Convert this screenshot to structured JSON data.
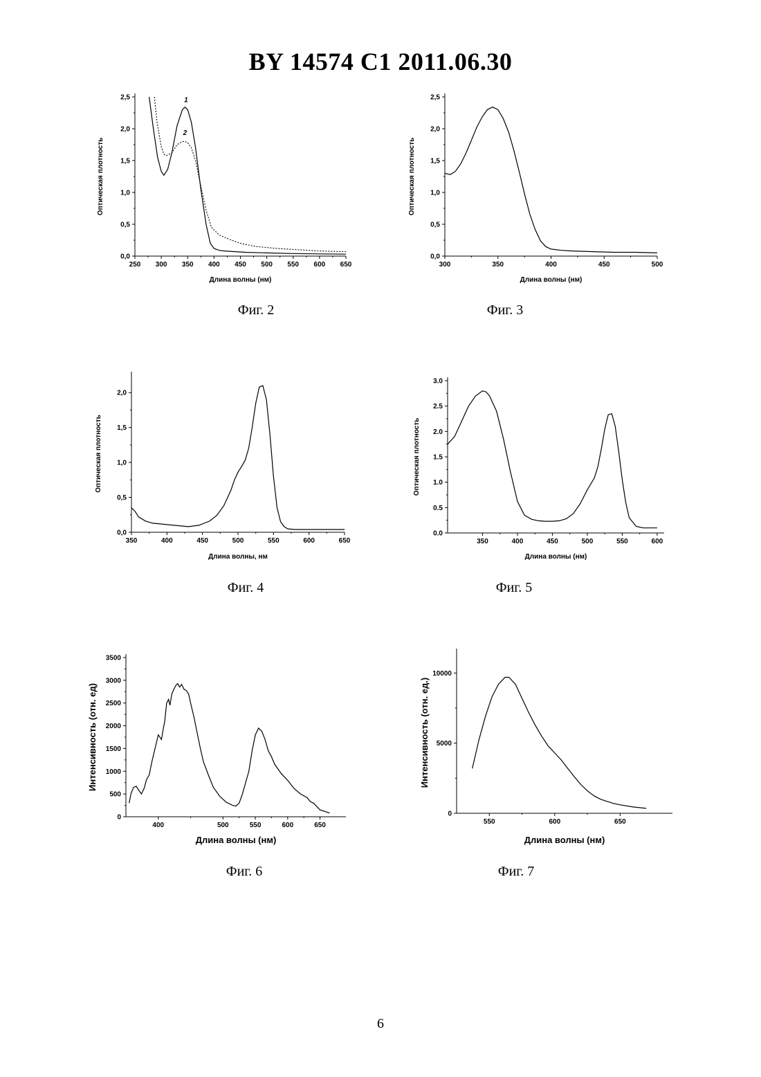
{
  "header": {
    "title": "BY  14574  C1  2011.06.30"
  },
  "page_number": "6",
  "figures": [
    {
      "caption": "Фиг. 2"
    },
    {
      "caption": "Фиг. 3"
    },
    {
      "caption": "Фиг. 4"
    },
    {
      "caption": "Фиг. 5"
    },
    {
      "caption": "Фиг. 6"
    },
    {
      "caption": "Фиг. 7"
    }
  ],
  "chart_data": [
    {
      "type": "line",
      "figure": "Фиг. 2",
      "title": "",
      "xlabel": "Длина волны (нм)",
      "ylabel": "Оптическая плотность",
      "xlim": [
        250,
        650
      ],
      "ylim": [
        0,
        2.5
      ],
      "xticks": [
        250,
        300,
        350,
        400,
        450,
        500,
        550,
        600,
        650
      ],
      "xtick_labels": [
        "250",
        "300",
        "350",
        "400",
        "450",
        "500",
        "550",
        "600",
        "650"
      ],
      "yticks": [
        0,
        0.5,
        1.0,
        1.5,
        2.0,
        2.5
      ],
      "ytick_labels": [
        "0,0",
        "0,5",
        "1,0",
        "1,5",
        "2,0",
        "2,5"
      ],
      "annotations": [
        "1",
        "2"
      ],
      "series": [
        {
          "style": "solid",
          "x": [
            277,
            285,
            293,
            300,
            305,
            312,
            320,
            330,
            340,
            345,
            350,
            357,
            365,
            375,
            385,
            393,
            400,
            410,
            420,
            440,
            460,
            500,
            550,
            600,
            650
          ],
          "y": [
            2.5,
            2.0,
            1.55,
            1.33,
            1.27,
            1.36,
            1.62,
            2.05,
            2.3,
            2.34,
            2.3,
            2.1,
            1.7,
            1.05,
            0.5,
            0.2,
            0.12,
            0.09,
            0.08,
            0.07,
            0.06,
            0.05,
            0.04,
            0.035,
            0.03
          ]
        },
        {
          "style": "dotted",
          "x": [
            287,
            292,
            300,
            305,
            310,
            320,
            330,
            340,
            345,
            350,
            357,
            365,
            375,
            385,
            395,
            410,
            430,
            450,
            480,
            520,
            560,
            600,
            650
          ],
          "y": [
            2.5,
            2.1,
            1.72,
            1.6,
            1.58,
            1.62,
            1.75,
            1.8,
            1.8,
            1.78,
            1.7,
            1.5,
            1.1,
            0.72,
            0.45,
            0.33,
            0.26,
            0.2,
            0.15,
            0.12,
            0.1,
            0.08,
            0.07
          ]
        }
      ]
    },
    {
      "type": "line",
      "figure": "Фиг. 3",
      "title": "",
      "xlabel": "Длина волны (нм)",
      "ylabel": "Оптическая плотность",
      "xlim": [
        300,
        500
      ],
      "ylim": [
        0,
        2.5
      ],
      "xticks": [
        300,
        350,
        400,
        450,
        500
      ],
      "xtick_labels": [
        "300",
        "350",
        "400",
        "450",
        "500"
      ],
      "yticks": [
        0,
        0.5,
        1.0,
        1.5,
        2.0,
        2.5
      ],
      "ytick_labels": [
        "0,0",
        "0,5",
        "1,0",
        "1,5",
        "2,0",
        "2,5"
      ],
      "series": [
        {
          "style": "solid",
          "x": [
            300,
            305,
            310,
            315,
            320,
            325,
            330,
            335,
            340,
            345,
            350,
            355,
            360,
            365,
            370,
            375,
            380,
            385,
            390,
            395,
            400,
            410,
            420,
            440,
            460,
            480,
            500
          ],
          "y": [
            1.3,
            1.28,
            1.33,
            1.45,
            1.62,
            1.82,
            2.02,
            2.18,
            2.3,
            2.34,
            2.3,
            2.16,
            1.95,
            1.66,
            1.33,
            0.98,
            0.66,
            0.42,
            0.24,
            0.15,
            0.11,
            0.09,
            0.08,
            0.07,
            0.06,
            0.06,
            0.05
          ]
        }
      ]
    },
    {
      "type": "line",
      "figure": "Фиг. 4",
      "title": "",
      "xlabel": "Длина волны, нм",
      "ylabel": "Оптическая плотность",
      "xlim": [
        350,
        650
      ],
      "ylim": [
        0,
        2.25
      ],
      "xticks": [
        350,
        400,
        450,
        500,
        550,
        600,
        650
      ],
      "xtick_labels": [
        "350",
        "400",
        "450",
        "500",
        "550",
        "600",
        "650"
      ],
      "yticks": [
        0,
        0.5,
        1.0,
        1.5,
        2.0
      ],
      "ytick_labels": [
        "0,0",
        "0,5",
        "1,0",
        "1,5",
        "2,0"
      ],
      "series": [
        {
          "style": "solid",
          "x": [
            350,
            355,
            360,
            370,
            380,
            400,
            420,
            430,
            445,
            460,
            470,
            480,
            490,
            495,
            500,
            505,
            510,
            515,
            520,
            525,
            530,
            535,
            540,
            545,
            550,
            555,
            560,
            565,
            570,
            580,
            600,
            650
          ],
          "y": [
            0.35,
            0.3,
            0.22,
            0.16,
            0.13,
            0.11,
            0.09,
            0.08,
            0.1,
            0.16,
            0.24,
            0.38,
            0.6,
            0.75,
            0.86,
            0.94,
            1.03,
            1.2,
            1.5,
            1.85,
            2.08,
            2.1,
            1.9,
            1.4,
            0.8,
            0.35,
            0.15,
            0.08,
            0.05,
            0.04,
            0.04,
            0.04
          ]
        }
      ]
    },
    {
      "type": "line",
      "figure": "Фиг. 5",
      "title": "",
      "xlabel": "Длина волны (нм)",
      "ylabel": "Оптическая плотность",
      "xlim": [
        300,
        610
      ],
      "ylim": [
        0,
        3.0
      ],
      "xticks": [
        350,
        400,
        450,
        500,
        550,
        600
      ],
      "xtick_labels": [
        "350",
        "400",
        "450",
        "500",
        "550",
        "600"
      ],
      "yticks": [
        0,
        0.5,
        1.0,
        1.5,
        2.0,
        2.5,
        3.0
      ],
      "ytick_labels": [
        "0.0",
        "0.5",
        "1.0",
        "1.5",
        "2.0",
        "2.5",
        "3.0"
      ],
      "series": [
        {
          "style": "solid",
          "x": [
            300,
            310,
            320,
            330,
            340,
            350,
            355,
            360,
            370,
            380,
            390,
            400,
            410,
            420,
            430,
            440,
            450,
            460,
            470,
            480,
            490,
            500,
            510,
            515,
            520,
            525,
            530,
            535,
            540,
            545,
            550,
            555,
            560,
            570,
            580,
            590,
            600
          ],
          "y": [
            1.75,
            1.9,
            2.2,
            2.5,
            2.7,
            2.8,
            2.78,
            2.7,
            2.4,
            1.85,
            1.2,
            0.62,
            0.35,
            0.27,
            0.24,
            0.23,
            0.23,
            0.24,
            0.28,
            0.38,
            0.58,
            0.85,
            1.08,
            1.3,
            1.65,
            2.05,
            2.33,
            2.35,
            2.1,
            1.6,
            1.05,
            0.6,
            0.3,
            0.13,
            0.1,
            0.1,
            0.1
          ]
        }
      ]
    },
    {
      "type": "line",
      "figure": "Фиг. 6",
      "title": "",
      "xlabel": "Длина волны (нм)",
      "ylabel": "Интенсивность (отн. ед)",
      "xlim": [
        350,
        690
      ],
      "ylim": [
        0,
        3500
      ],
      "xticks": [
        400,
        500,
        550,
        600,
        650
      ],
      "xtick_labels": [
        "400",
        "500",
        "550",
        "600",
        "650"
      ],
      "yticks": [
        0,
        500,
        1000,
        1500,
        2000,
        2500,
        3000,
        3500
      ],
      "ytick_labels": [
        "0",
        "500",
        "1000",
        "1500",
        "2000",
        "2500",
        "3000",
        "3500"
      ],
      "series": [
        {
          "style": "solid",
          "x": [
            355,
            358,
            362,
            366,
            370,
            374,
            378,
            382,
            386,
            390,
            395,
            400,
            405,
            408,
            410,
            413,
            416,
            418,
            421,
            424,
            427,
            430,
            433,
            436,
            440,
            443,
            447,
            450,
            455,
            460,
            465,
            470,
            478,
            485,
            495,
            505,
            515,
            520,
            525,
            530,
            540,
            545,
            550,
            555,
            560,
            565,
            570,
            575,
            580,
            590,
            600,
            610,
            620,
            630,
            635,
            640,
            650,
            665
          ],
          "y": [
            300,
            520,
            650,
            670,
            580,
            500,
            620,
            820,
            920,
            1200,
            1500,
            1800,
            1700,
            1950,
            2100,
            2500,
            2580,
            2450,
            2700,
            2800,
            2880,
            2930,
            2850,
            2910,
            2800,
            2780,
            2700,
            2500,
            2200,
            1850,
            1500,
            1200,
            900,
            650,
            450,
            320,
            250,
            235,
            300,
            500,
            1000,
            1450,
            1800,
            1950,
            1880,
            1700,
            1450,
            1320,
            1150,
            950,
            800,
            620,
            500,
            420,
            330,
            300,
            150,
            80
          ]
        }
      ]
    },
    {
      "type": "line",
      "figure": "Фиг. 7",
      "title": "",
      "xlabel": "Длина  волны (нм)",
      "ylabel": "Интенсивность (отн. ед.)",
      "xlim": [
        525,
        690
      ],
      "ylim": [
        0,
        11500
      ],
      "xticks": [
        550,
        600,
        650
      ],
      "xtick_labels": [
        "550",
        "600",
        "650"
      ],
      "yticks": [
        0,
        5000,
        10000
      ],
      "ytick_labels": [
        "0",
        "5000",
        "10000"
      ],
      "series": [
        {
          "style": "solid",
          "x": [
            537,
            542,
            547,
            552,
            557,
            562,
            565,
            570,
            575,
            580,
            585,
            590,
            595,
            600,
            605,
            610,
            615,
            620,
            625,
            630,
            635,
            640,
            645,
            650,
            660,
            670
          ],
          "y": [
            3200,
            5200,
            6900,
            8300,
            9200,
            9700,
            9700,
            9200,
            8200,
            7200,
            6300,
            5500,
            4800,
            4300,
            3800,
            3200,
            2600,
            2050,
            1600,
            1250,
            1000,
            850,
            700,
            600,
            450,
            350
          ]
        }
      ]
    }
  ]
}
